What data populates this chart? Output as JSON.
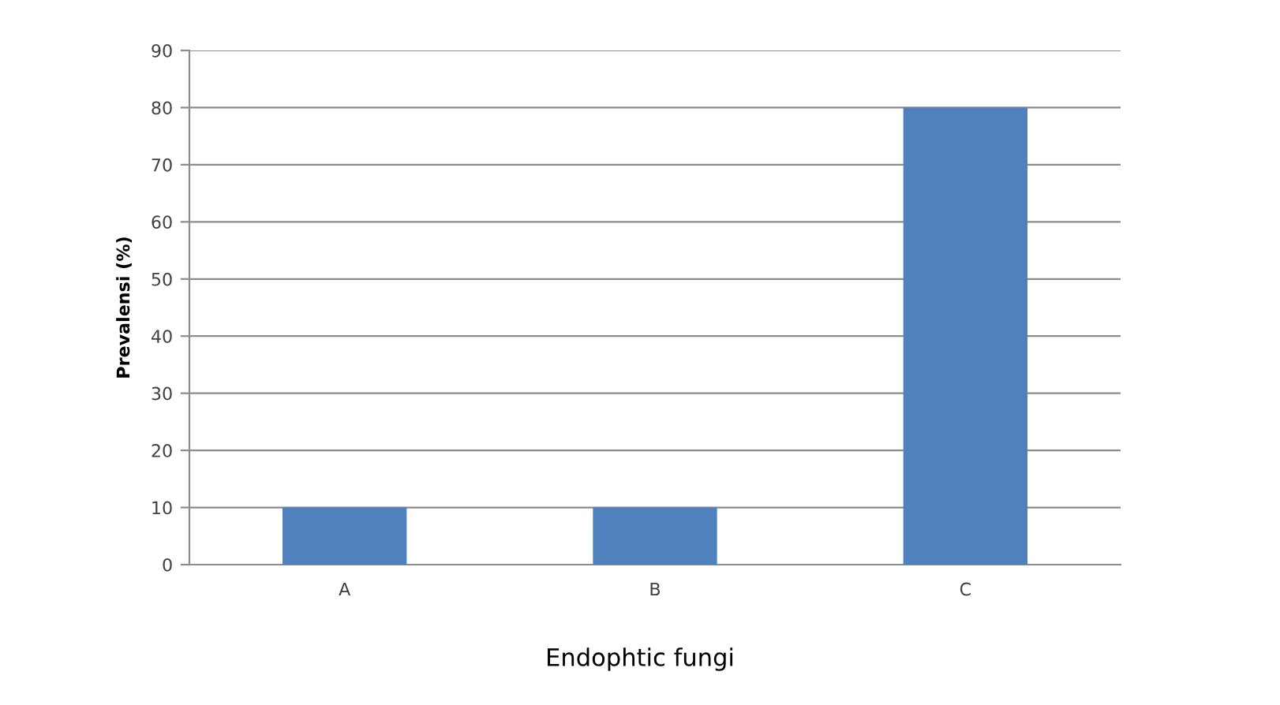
{
  "chart_data": {
    "type": "bar",
    "xlabel": "Endophtic fungi",
    "ylabel": "Prevalensi (%)",
    "categories": [
      "A",
      "B",
      "C"
    ],
    "values": [
      10,
      10,
      80
    ],
    "color": "#4f81bd",
    "ylim": [
      0,
      90
    ],
    "yticks": [
      0,
      10,
      20,
      30,
      40,
      50,
      60,
      70,
      80,
      90
    ],
    "grid": "y"
  }
}
